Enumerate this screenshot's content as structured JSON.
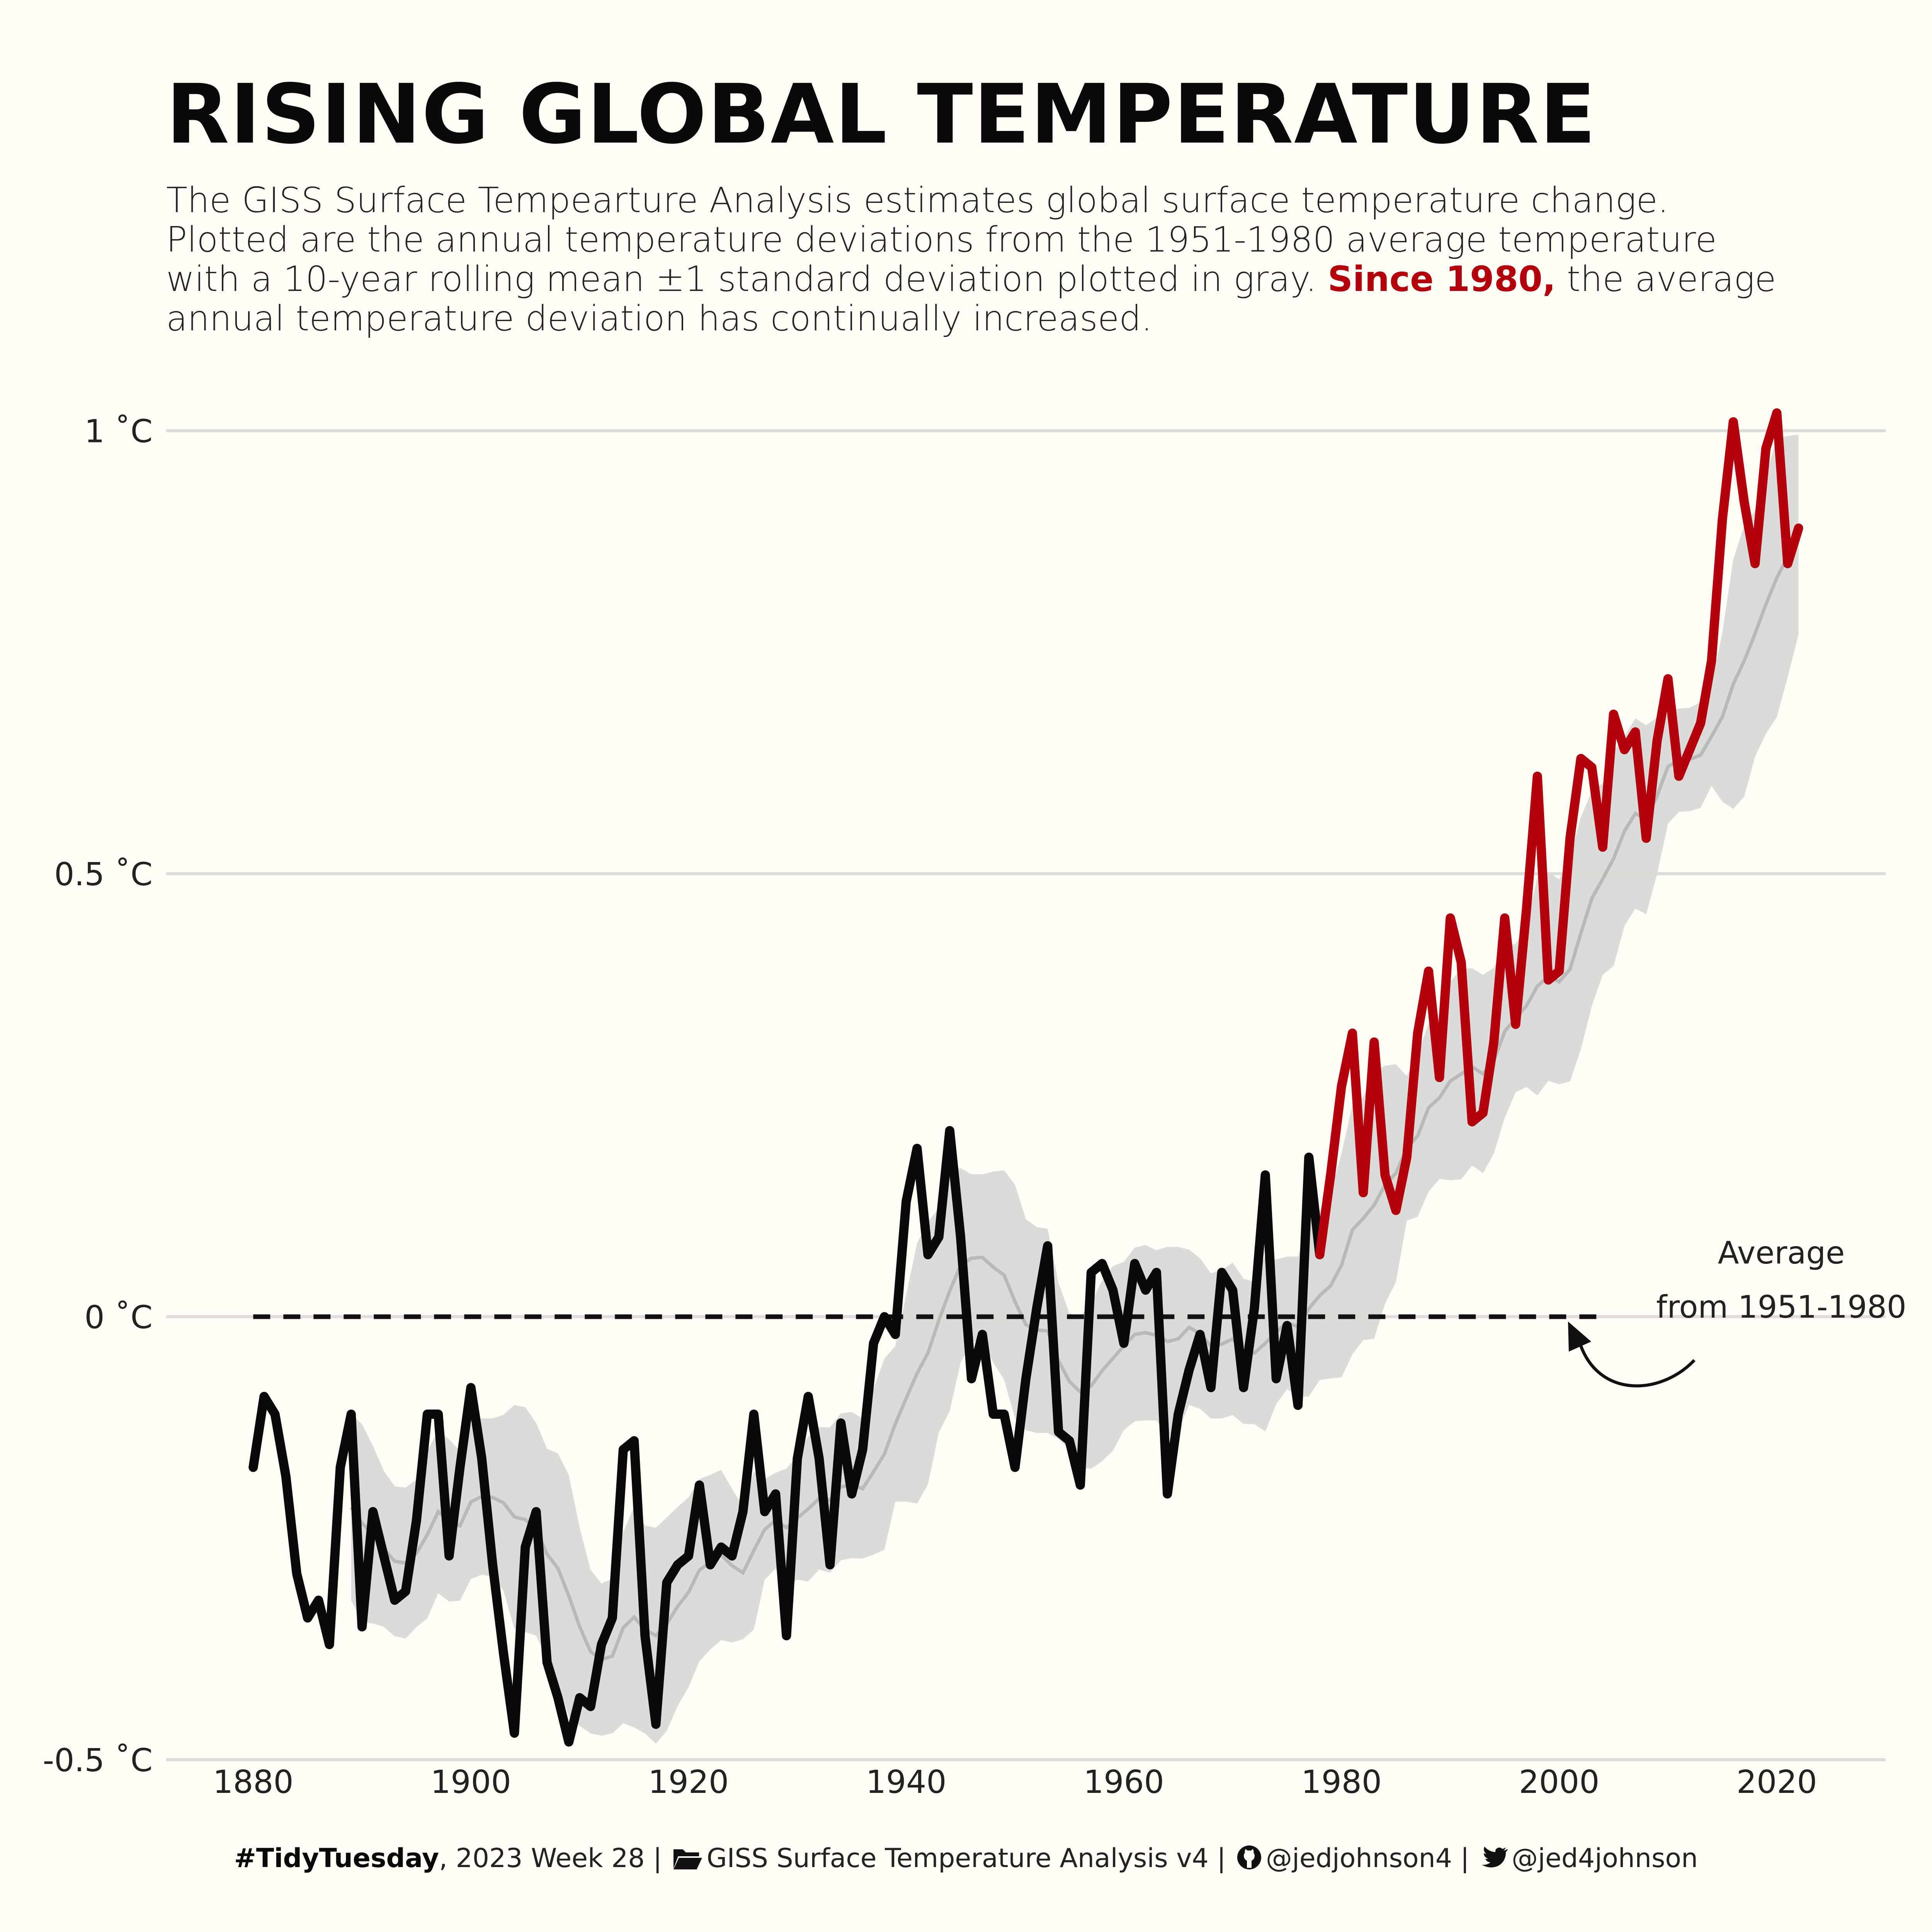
{
  "title": "RISING GLOBAL TEMPERATURE",
  "subtitle": {
    "line1": "The GISS Surface Tempearture Analysis estimates global surface temperature change.",
    "line2": "Plotted are the annual temperature deviations from the 1951-1980 average temperature",
    "line3_before": "with a 10-year rolling mean ±1 standard deviation plotted in gray. ",
    "line3_highlight": "Since 1980,",
    "line3_after": " the average",
    "line4": "annual temperature deviation has continually increased."
  },
  "colors": {
    "background": "#fffdf6",
    "highlight": "#b3000c",
    "line": "#0a0a0a",
    "band": "#d9d9d7",
    "rolling_mean": "#b9b9b7",
    "gridline": "#dcdcda"
  },
  "chart_data": {
    "type": "line",
    "x_ticks": [
      1880,
      1900,
      1920,
      1940,
      1960,
      1980,
      2000,
      2020
    ],
    "y_ticks": [
      {
        "value": -0.5,
        "label": "-0.5 ˚C"
      },
      {
        "value": 0,
        "label": "0 ˚C"
      },
      {
        "value": 0.5,
        "label": "0.5 ˚C"
      },
      {
        "value": 1,
        "label": "1 ˚C"
      }
    ],
    "xlim": [
      1872,
      2030
    ],
    "ylim": [
      -0.52,
      1.05
    ],
    "grid": "horizontal",
    "reference_line": {
      "y": 0,
      "x_start": 1880,
      "x_end": 2004,
      "style": "dashed"
    },
    "highlight_from": 1978,
    "annotation": {
      "lines": [
        "Average",
        "from 1951-1980"
      ],
      "arrow": true
    },
    "x": [
      1880,
      1881,
      1882,
      1883,
      1884,
      1885,
      1886,
      1887,
      1888,
      1889,
      1890,
      1891,
      1892,
      1893,
      1894,
      1895,
      1896,
      1897,
      1898,
      1899,
      1900,
      1901,
      1902,
      1903,
      1904,
      1905,
      1906,
      1907,
      1908,
      1909,
      1910,
      1911,
      1912,
      1913,
      1914,
      1915,
      1916,
      1917,
      1918,
      1919,
      1920,
      1921,
      1922,
      1923,
      1924,
      1925,
      1926,
      1927,
      1928,
      1929,
      1930,
      1931,
      1932,
      1933,
      1934,
      1935,
      1936,
      1937,
      1938,
      1939,
      1940,
      1941,
      1942,
      1943,
      1944,
      1945,
      1946,
      1947,
      1948,
      1949,
      1950,
      1951,
      1952,
      1953,
      1954,
      1955,
      1956,
      1957,
      1958,
      1959,
      1960,
      1961,
      1962,
      1963,
      1964,
      1965,
      1966,
      1967,
      1968,
      1969,
      1970,
      1971,
      1972,
      1973,
      1974,
      1975,
      1976,
      1977,
      1978,
      1979,
      1980,
      1981,
      1982,
      1983,
      1984,
      1985,
      1986,
      1987,
      1988,
      1989,
      1990,
      1991,
      1992,
      1993,
      1994,
      1995,
      1996,
      1997,
      1998,
      1999,
      2000,
      2001,
      2002,
      2003,
      2004,
      2005,
      2006,
      2007,
      2008,
      2009,
      2010,
      2011,
      2012,
      2013,
      2014,
      2015,
      2016,
      2017,
      2018,
      2019,
      2020,
      2021,
      2022
    ],
    "series": [
      {
        "values": [
          -0.17,
          -0.09,
          -0.11,
          -0.18,
          -0.29,
          -0.34,
          -0.32,
          -0.37,
          -0.17,
          -0.11,
          -0.35,
          -0.22,
          -0.27,
          -0.32,
          -0.31,
          -0.23,
          -0.11,
          -0.11,
          -0.27,
          -0.17,
          -0.08,
          -0.16,
          -0.28,
          -0.38,
          -0.47,
          -0.26,
          -0.22,
          -0.39,
          -0.43,
          -0.48,
          -0.43,
          -0.44,
          -0.37,
          -0.34,
          -0.15,
          -0.14,
          -0.36,
          -0.46,
          -0.3,
          -0.28,
          -0.27,
          -0.19,
          -0.28,
          -0.26,
          -0.27,
          -0.22,
          -0.11,
          -0.22,
          -0.2,
          -0.36,
          -0.16,
          -0.09,
          -0.16,
          -0.28,
          -0.12,
          -0.2,
          -0.15,
          -0.03,
          0.0,
          -0.02,
          0.13,
          0.19,
          0.07,
          0.09,
          0.21,
          0.09,
          -0.07,
          -0.02,
          -0.11,
          -0.11,
          -0.17,
          -0.07,
          0.01,
          0.08,
          -0.13,
          -0.14,
          -0.19,
          0.05,
          0.06,
          0.03,
          -0.03,
          0.06,
          0.03,
          0.05,
          -0.2,
          -0.11,
          -0.06,
          -0.02,
          -0.08,
          0.05,
          0.03,
          -0.08,
          0.01,
          0.16,
          -0.07,
          -0.01,
          -0.1,
          0.18,
          0.07,
          0.16,
          0.26,
          0.32,
          0.14,
          0.31,
          0.16,
          0.12,
          0.18,
          0.32,
          0.39,
          0.27,
          0.45,
          0.4,
          0.22,
          0.23,
          0.31,
          0.45,
          0.33,
          0.46,
          0.61,
          0.38,
          0.39,
          0.54,
          0.63,
          0.62,
          0.53,
          0.68,
          0.64,
          0.66,
          0.54,
          0.65,
          0.72,
          0.61,
          0.64,
          0.67,
          0.74,
          0.9,
          1.01,
          0.92,
          0.85,
          0.98,
          1.02,
          0.85,
          0.89
        ]
      }
    ]
  },
  "footer": {
    "tag": "#TidyTuesday",
    "week": ", 2023 Week 28",
    "sep": "|",
    "source": "GISS Surface Temperature Analysis v4",
    "github": "@jedjohnson4",
    "twitter": "@jed4johnson",
    "icons": [
      "folder-open-icon",
      "github-icon",
      "twitter-icon"
    ]
  }
}
